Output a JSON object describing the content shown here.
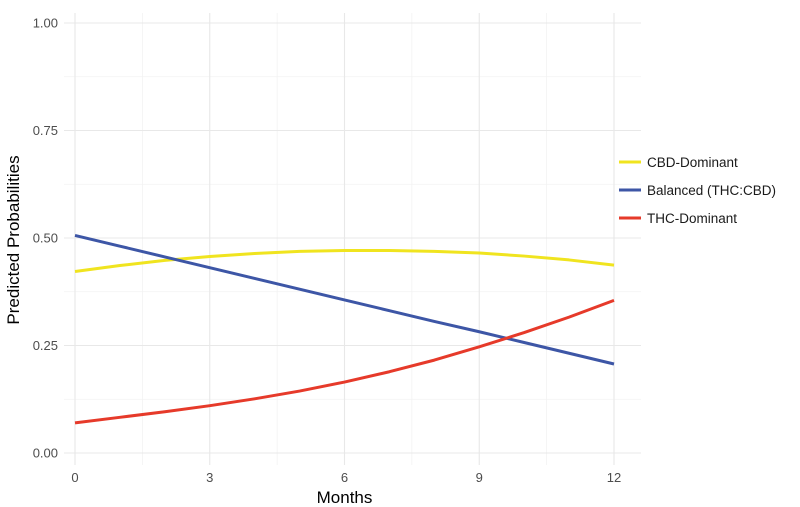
{
  "chart_data": {
    "type": "line",
    "title": "",
    "xlabel": "Months",
    "ylabel": "Predicted Probabilities",
    "xlim": [
      0,
      12
    ],
    "ylim": [
      0,
      1
    ],
    "x_ticks": [
      0,
      3,
      6,
      9,
      12
    ],
    "x_tick_labels": [
      "0",
      "3",
      "6",
      "9",
      "12"
    ],
    "y_ticks": [
      0,
      0.25,
      0.5,
      0.75,
      1
    ],
    "y_tick_labels": [
      "0.00",
      "0.25",
      "0.50",
      "0.75",
      "1.00"
    ],
    "grid": true,
    "legend_position": "right",
    "x": [
      0,
      1,
      2,
      3,
      4,
      5,
      6,
      7,
      8,
      9,
      10,
      11,
      12
    ],
    "series": [
      {
        "name": "CBD-Dominant",
        "color": "#f0e41f",
        "values": [
          0.422,
          0.436,
          0.448,
          0.457,
          0.464,
          0.469,
          0.471,
          0.471,
          0.469,
          0.465,
          0.458,
          0.449,
          0.437
        ]
      },
      {
        "name": "Balanced (THC:CBD)",
        "color": "#3d56a6",
        "values": [
          0.506,
          0.481,
          0.456,
          0.431,
          0.406,
          0.381,
          0.356,
          0.331,
          0.306,
          0.282,
          0.257,
          0.232,
          0.207
        ]
      },
      {
        "name": "THC-Dominant",
        "color": "#e63a2a",
        "values": [
          0.07,
          0.083,
          0.096,
          0.11,
          0.126,
          0.144,
          0.165,
          0.189,
          0.216,
          0.247,
          0.28,
          0.316,
          0.355
        ]
      }
    ]
  }
}
